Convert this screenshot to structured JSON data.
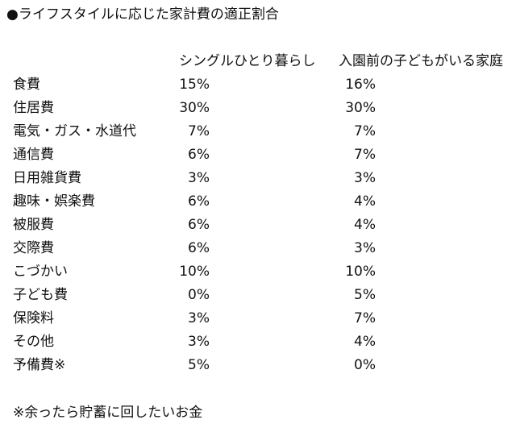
{
  "title": "●ライフスタイルに応じた家計費の適正割合",
  "columns": [
    "シングルひとり暮らし",
    "入園前の子どもがいる家庭"
  ],
  "rows": [
    {
      "label": "食費",
      "single": "15%",
      "family": "16%"
    },
    {
      "label": "住居費",
      "single": "30%",
      "family": "30%"
    },
    {
      "label": "電気・ガス・水道代",
      "single": "7%",
      "family": "7%"
    },
    {
      "label": "通信費",
      "single": "6%",
      "family": "7%"
    },
    {
      "label": "日用雑貨費",
      "single": "3%",
      "family": "3%"
    },
    {
      "label": "趣味・娯楽費",
      "single": "6%",
      "family": "4%"
    },
    {
      "label": "被服費",
      "single": "6%",
      "family": "4%"
    },
    {
      "label": "交際費",
      "single": "6%",
      "family": "3%"
    },
    {
      "label": "こづかい",
      "single": "10%",
      "family": "10%"
    },
    {
      "label": "子ども費",
      "single": "0%",
      "family": "5%"
    },
    {
      "label": "保険料",
      "single": "3%",
      "family": "7%"
    },
    {
      "label": "その他",
      "single": "3%",
      "family": "4%"
    },
    {
      "label": "予備費※",
      "single": "5%",
      "family": "0%"
    }
  ],
  "note": "※余ったら貯蓄に回したいお金"
}
